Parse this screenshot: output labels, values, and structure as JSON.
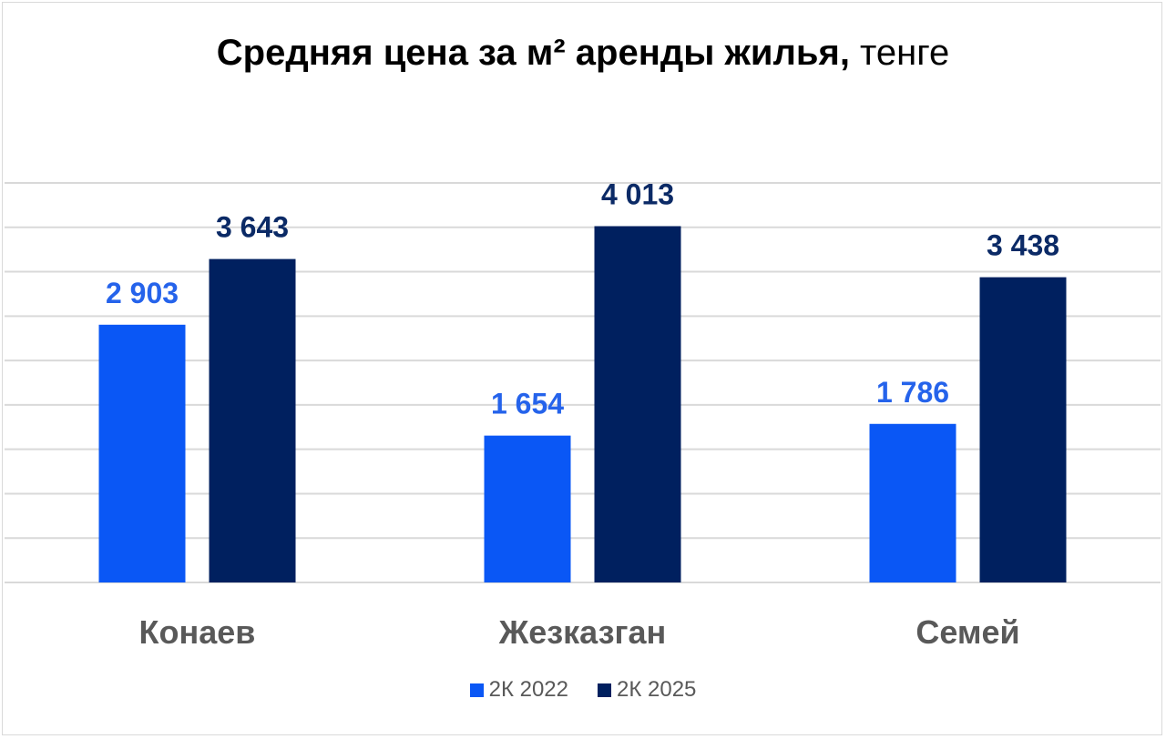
{
  "chart_data": {
    "type": "bar",
    "title_bold": "Средняя цена за м² аренды   жилья,",
    "title_normal": " тенге",
    "categories": [
      "Конаев",
      "Жезказган",
      "Семей"
    ],
    "series": [
      {
        "name": "2К 2022",
        "values": [
          2903,
          1654,
          1786
        ],
        "labels": [
          "2 903",
          "1 654",
          "1 786"
        ],
        "color": "#0a57f5"
      },
      {
        "name": "2К 2025",
        "values": [
          3643,
          4013,
          3438
        ],
        "labels": [
          "3 643",
          "4 013",
          "3 438"
        ],
        "color": "#00205f"
      }
    ],
    "ylim": [
      0,
      4500
    ],
    "grid": true,
    "legend_position": "bottom"
  }
}
